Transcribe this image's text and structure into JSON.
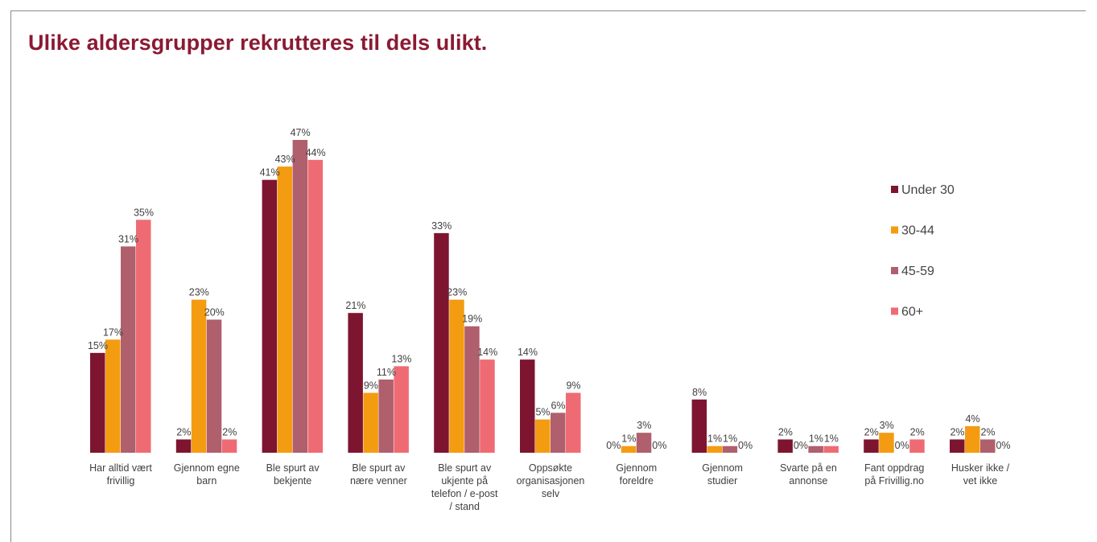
{
  "slide_title": "Ulike aldersgrupper rekrutteres til dels ulikt.",
  "chart_data": {
    "type": "bar",
    "title": "",
    "xlabel": "",
    "ylabel": "",
    "ylim": [
      0,
      47
    ],
    "grid": false,
    "legend_position": "right",
    "categories": [
      [
        "Har alltid vært",
        "frivillig"
      ],
      [
        "Gjennom egne",
        "barn"
      ],
      [
        "Ble spurt av",
        "bekjente"
      ],
      [
        "Ble spurt av",
        "nære venner"
      ],
      [
        "Ble spurt av",
        "ukjente på",
        "telefon / e-post",
        "/ stand"
      ],
      [
        "Oppsøkte",
        "organisasjonen",
        "selv"
      ],
      [
        "Gjennom",
        "foreldre"
      ],
      [
        "Gjennom",
        "studier"
      ],
      [
        "Svarte på en",
        "annonse"
      ],
      [
        "Fant oppdrag",
        "på Frivillig.no"
      ],
      [
        "Husker ikke /",
        "vet ikke"
      ]
    ],
    "series": [
      {
        "name": "Under 30",
        "color": "#7d1530",
        "values": [
          15,
          2,
          41,
          21,
          33,
          14,
          0,
          8,
          2,
          2,
          2
        ]
      },
      {
        "name": "30-44",
        "color": "#f39c12",
        "values": [
          17,
          23,
          43,
          9,
          23,
          5,
          1,
          1,
          0,
          3,
          4
        ]
      },
      {
        "name": "45-59",
        "color": "#b05f6d",
        "values": [
          31,
          20,
          47,
          11,
          19,
          6,
          3,
          1,
          1,
          0,
          2
        ]
      },
      {
        "name": "60+",
        "color": "#ef6b73",
        "values": [
          35,
          2,
          44,
          13,
          14,
          9,
          0,
          0,
          1,
          2,
          0
        ]
      }
    ]
  }
}
